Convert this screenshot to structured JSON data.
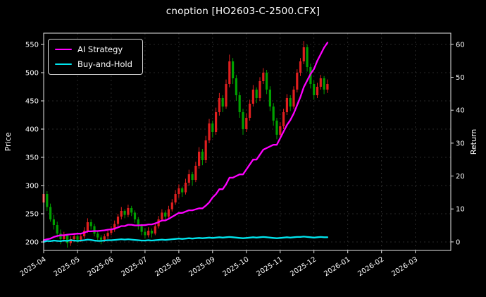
{
  "chart_data": {
    "type": "candlestick",
    "title": "cnoption [HO2603-C-2500.CFX]",
    "ylabel_left": "Price",
    "ylabel_right": "Return",
    "x_unit": "months since 2025-04",
    "x_range_months": [
      0,
      12.05
    ],
    "x_tick_labels": [
      "2025-04",
      "2025-05",
      "2025-06",
      "2025-07",
      "2025-08",
      "2025-09",
      "2025-10",
      "2025-11",
      "2025-12",
      "2026-01",
      "2026-02",
      "2026-03"
    ],
    "ylim_left": [
      185,
      570
    ],
    "y_ticks_left": [
      200,
      250,
      300,
      350,
      400,
      450,
      500,
      550
    ],
    "ylim_right": [
      -2.6,
      63.4
    ],
    "y_ticks_right": [
      0,
      10,
      20,
      30,
      40,
      50,
      60
    ],
    "grid": true,
    "legend_position": "upper-left",
    "colors": {
      "background": "#000000",
      "text": "#ffffff",
      "grid": "#3f3f3f",
      "frame": "#e6e6e6",
      "up": "#e01f1f",
      "down": "#00a000",
      "strategy": "#ff00ff",
      "buyhold": "#00e5ee"
    },
    "candles_format": [
      "x_month",
      "open",
      "high",
      "low",
      "close"
    ],
    "candles": [
      [
        0.0,
        270,
        300,
        255,
        285
      ],
      [
        0.1,
        285,
        290,
        255,
        262
      ],
      [
        0.2,
        262,
        268,
        236,
        240
      ],
      [
        0.3,
        240,
        248,
        222,
        230
      ],
      [
        0.4,
        230,
        236,
        208,
        215
      ],
      [
        0.5,
        215,
        222,
        196,
        205
      ],
      [
        0.6,
        205,
        218,
        200,
        212
      ],
      [
        0.7,
        212,
        214,
        190,
        198
      ],
      [
        0.8,
        198,
        210,
        193,
        205
      ],
      [
        0.9,
        205,
        216,
        200,
        210
      ],
      [
        1.0,
        210,
        213,
        198,
        204
      ],
      [
        1.1,
        204,
        215,
        200,
        210
      ],
      [
        1.2,
        210,
        226,
        206,
        220
      ],
      [
        1.3,
        220,
        242,
        216,
        235
      ],
      [
        1.4,
        235,
        240,
        222,
        228
      ],
      [
        1.5,
        228,
        232,
        210,
        215
      ],
      [
        1.6,
        215,
        220,
        202,
        208
      ],
      [
        1.7,
        208,
        212,
        196,
        204
      ],
      [
        1.8,
        204,
        214,
        200,
        210
      ],
      [
        1.9,
        210,
        220,
        205,
        216
      ],
      [
        2.0,
        216,
        228,
        212,
        222
      ],
      [
        2.1,
        222,
        238,
        218,
        232
      ],
      [
        2.2,
        232,
        250,
        228,
        245
      ],
      [
        2.3,
        245,
        262,
        240,
        255
      ],
      [
        2.4,
        255,
        258,
        242,
        248
      ],
      [
        2.5,
        248,
        266,
        244,
        260
      ],
      [
        2.6,
        260,
        264,
        246,
        252
      ],
      [
        2.7,
        252,
        256,
        234,
        240
      ],
      [
        2.8,
        240,
        244,
        222,
        228
      ],
      [
        2.9,
        228,
        232,
        212,
        218
      ],
      [
        3.0,
        218,
        224,
        206,
        212
      ],
      [
        3.1,
        212,
        226,
        208,
        220
      ],
      [
        3.2,
        220,
        224,
        208,
        215
      ],
      [
        3.3,
        215,
        234,
        212,
        228
      ],
      [
        3.4,
        228,
        246,
        224,
        240
      ],
      [
        3.5,
        240,
        258,
        236,
        252
      ],
      [
        3.6,
        252,
        256,
        238,
        245
      ],
      [
        3.7,
        245,
        264,
        242,
        258
      ],
      [
        3.8,
        258,
        276,
        254,
        270
      ],
      [
        3.9,
        270,
        292,
        266,
        285
      ],
      [
        4.0,
        285,
        302,
        278,
        295
      ],
      [
        4.1,
        295,
        298,
        280,
        288
      ],
      [
        4.2,
        288,
        312,
        284,
        305
      ],
      [
        4.3,
        305,
        328,
        300,
        320
      ],
      [
        4.4,
        320,
        324,
        300,
        310
      ],
      [
        4.5,
        310,
        342,
        306,
        335
      ],
      [
        4.6,
        335,
        368,
        330,
        360
      ],
      [
        4.7,
        360,
        365,
        336,
        345
      ],
      [
        4.8,
        345,
        388,
        340,
        380
      ],
      [
        4.9,
        380,
        418,
        375,
        410
      ],
      [
        5.0,
        410,
        415,
        385,
        395
      ],
      [
        5.1,
        395,
        438,
        390,
        430
      ],
      [
        5.2,
        430,
        464,
        424,
        455
      ],
      [
        5.3,
        455,
        460,
        430,
        440
      ],
      [
        5.4,
        440,
        488,
        436,
        480
      ],
      [
        5.5,
        480,
        532,
        474,
        520
      ],
      [
        5.6,
        520,
        526,
        480,
        490
      ],
      [
        5.7,
        490,
        496,
        450,
        460
      ],
      [
        5.8,
        460,
        466,
        420,
        430
      ],
      [
        5.9,
        430,
        436,
        390,
        400
      ],
      [
        6.0,
        400,
        428,
        395,
        420
      ],
      [
        6.1,
        420,
        452,
        415,
        445
      ],
      [
        6.2,
        445,
        478,
        440,
        470
      ],
      [
        6.3,
        470,
        474,
        446,
        455
      ],
      [
        6.4,
        455,
        492,
        450,
        485
      ],
      [
        6.5,
        485,
        508,
        480,
        500
      ],
      [
        6.6,
        500,
        505,
        462,
        470
      ],
      [
        6.7,
        470,
        476,
        432,
        440
      ],
      [
        6.8,
        440,
        446,
        406,
        415
      ],
      [
        6.9,
        415,
        420,
        382,
        390
      ],
      [
        7.0,
        390,
        412,
        385,
        405
      ],
      [
        7.1,
        405,
        436,
        400,
        430
      ],
      [
        7.2,
        430,
        462,
        425,
        455
      ],
      [
        7.3,
        455,
        460,
        432,
        440
      ],
      [
        7.4,
        440,
        476,
        436,
        470
      ],
      [
        7.5,
        470,
        506,
        465,
        500
      ],
      [
        7.6,
        500,
        526,
        494,
        520
      ],
      [
        7.7,
        520,
        556,
        515,
        545
      ],
      [
        7.8,
        545,
        550,
        502,
        510
      ],
      [
        7.9,
        510,
        516,
        472,
        480
      ],
      [
        8.0,
        480,
        486,
        452,
        460
      ],
      [
        8.1,
        460,
        482,
        455,
        475
      ],
      [
        8.2,
        475,
        496,
        470,
        490
      ],
      [
        8.3,
        490,
        494,
        462,
        470
      ],
      [
        8.4,
        470,
        488,
        464,
        480
      ]
    ],
    "series": [
      {
        "name": "AI Strategy",
        "color": "#ff00ff",
        "axis": "right",
        "x_start": 0,
        "x_step": 0.1,
        "y": [
          0.5,
          0.8,
          1.0,
          1.5,
          1.8,
          2.0,
          2.0,
          2.2,
          2.3,
          2.4,
          2.5,
          2.5,
          2.8,
          3.2,
          3.2,
          3.3,
          3.3,
          3.4,
          3.5,
          3.7,
          3.8,
          4.0,
          4.4,
          4.8,
          4.8,
          5.2,
          5.2,
          5.0,
          5.0,
          5.1,
          5.1,
          5.3,
          5.3,
          5.6,
          6.0,
          6.5,
          6.5,
          7.0,
          7.6,
          8.2,
          8.8,
          8.8,
          9.2,
          9.6,
          9.6,
          9.9,
          10.2,
          10.2,
          11.0,
          12.0,
          13.5,
          14.5,
          16.0,
          16.0,
          17.5,
          19.5,
          19.5,
          20.0,
          20.5,
          20.5,
          22.0,
          23.5,
          25.0,
          25.0,
          26.5,
          28.0,
          28.5,
          29.0,
          29.5,
          29.5,
          31.5,
          33.5,
          35.5,
          37.0,
          39.0,
          41.5,
          44.0,
          47.0,
          49.0,
          51.0,
          52.5,
          55.0,
          57.0,
          59.0,
          60.5
        ]
      },
      {
        "name": "Buy-and-Hold",
        "color": "#00e5ee",
        "axis": "right",
        "x_start": 0,
        "x_step": 0.1,
        "y": [
          0.0,
          0.3,
          0.2,
          0.4,
          0.3,
          0.2,
          0.4,
          0.3,
          0.5,
          0.4,
          0.3,
          0.4,
          0.5,
          0.7,
          0.6,
          0.4,
          0.3,
          0.3,
          0.4,
          0.5,
          0.5,
          0.6,
          0.7,
          0.8,
          0.7,
          0.8,
          0.7,
          0.6,
          0.5,
          0.4,
          0.4,
          0.5,
          0.4,
          0.5,
          0.6,
          0.7,
          0.6,
          0.7,
          0.8,
          0.9,
          1.0,
          0.9,
          1.0,
          1.1,
          1.0,
          1.1,
          1.2,
          1.1,
          1.2,
          1.3,
          1.2,
          1.3,
          1.4,
          1.3,
          1.4,
          1.5,
          1.4,
          1.3,
          1.2,
          1.1,
          1.2,
          1.3,
          1.4,
          1.3,
          1.4,
          1.5,
          1.4,
          1.3,
          1.2,
          1.1,
          1.2,
          1.3,
          1.4,
          1.3,
          1.4,
          1.5,
          1.5,
          1.6,
          1.5,
          1.4,
          1.3,
          1.4,
          1.5,
          1.4,
          1.4
        ]
      }
    ]
  }
}
